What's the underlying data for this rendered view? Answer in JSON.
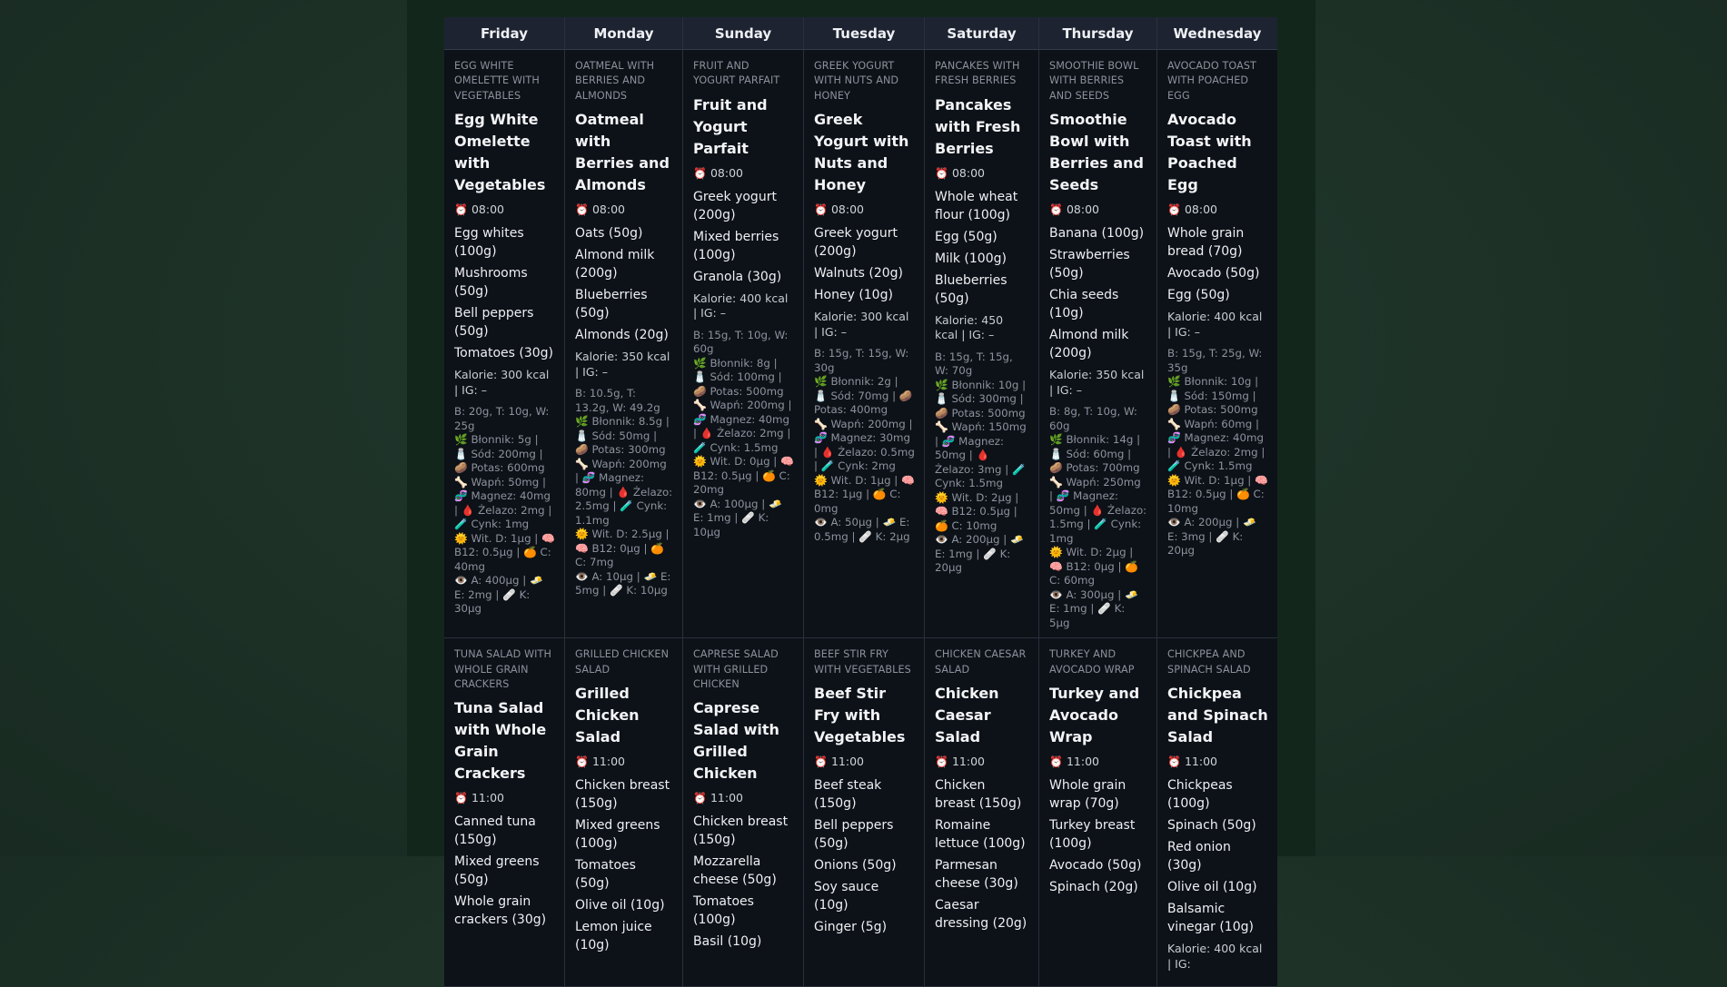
{
  "days": [
    "Friday",
    "Monday",
    "Sunday",
    "Tuesday",
    "Saturday",
    "Thursday",
    "Wednesday"
  ],
  "rows": [
    [
      {
        "subtitle": "EGG WHITE OMELETTE WITH VEGETABLES",
        "title": "Egg White Omelette with Vegetables",
        "time": "08:00",
        "ingredients": [
          "Egg whites (100g)",
          "Mushrooms (50g)",
          "Bell peppers (50g)",
          "Tomatoes (30g)"
        ],
        "kal": "Kalorie: 300 kcal | IG: –",
        "nutrients": "B: 20g, T: 10g, W: 25g\n🌿 Błonnik: 5g | 🧂 Sód: 200mg | 🥔 Potas: 600mg\n🦴 Wapń: 50mg | 🧬 Magnez: 40mg | 🩸 Żelazo: 2mg | 🧪 Cynk: 1mg\n🌞 Wit. D: 1μg | 🧠 B12: 0.5μg | 🍊 C: 40mg\n👁️ A: 400μg | 🧈 E: 2mg | 🩹 K: 30μg"
      },
      {
        "subtitle": "OATMEAL WITH BERRIES AND ALMONDS",
        "title": "Oatmeal with Berries and Almonds",
        "time": "08:00",
        "ingredients": [
          "Oats (50g)",
          "Almond milk (200g)",
          "Blueberries (50g)",
          "Almonds (20g)"
        ],
        "kal": "Kalorie: 350 kcal | IG: –",
        "nutrients": "B: 10.5g, T: 13.2g, W: 49.2g\n🌿 Błonnik: 8.5g | 🧂 Sód: 50mg | 🥔 Potas: 300mg\n🦴 Wapń: 200mg | 🧬 Magnez: 80mg | 🩸 Żelazo: 2.5mg | 🧪 Cynk: 1.1mg\n🌞 Wit. D: 2.5μg | 🧠 B12: 0μg | 🍊 C: 7mg\n👁️ A: 10μg | 🧈 E: 5mg | 🩹 K: 10μg"
      },
      {
        "subtitle": "FRUIT AND YOGURT PARFAIT",
        "title": "Fruit and Yogurt Parfait",
        "time": "08:00",
        "ingredients": [
          "Greek yogurt (200g)",
          "Mixed berries (100g)",
          "Granola (30g)"
        ],
        "kal": "Kalorie: 400 kcal | IG: –",
        "nutrients": "B: 15g, T: 10g, W: 60g\n🌿 Błonnik: 8g | 🧂 Sód: 100mg | 🥔 Potas: 500mg\n🦴 Wapń: 200mg | 🧬 Magnez: 40mg | 🩸 Żelazo: 2mg | 🧪 Cynk: 1.5mg\n🌞 Wit. D: 0μg | 🧠 B12: 0.5μg | 🍊 C: 20mg\n👁️ A: 100μg | 🧈 E: 1mg | 🩹 K: 10μg"
      },
      {
        "subtitle": "GREEK YOGURT WITH NUTS AND HONEY",
        "title": "Greek Yogurt with Nuts and Honey",
        "time": "08:00",
        "ingredients": [
          "Greek yogurt (200g)",
          "Walnuts (20g)",
          "Honey (10g)"
        ],
        "kal": "Kalorie: 300 kcal | IG: –",
        "nutrients": "B: 15g, T: 15g, W: 30g\n🌿 Błonnik: 2g | 🧂 Sód: 70mg | 🥔 Potas: 400mg\n🦴 Wapń: 200mg | 🧬 Magnez: 30mg | 🩸 Żelazo: 0.5mg | 🧪 Cynk: 2mg\n🌞 Wit. D: 1μg | 🧠 B12: 1μg | 🍊 C: 0mg\n👁️ A: 50μg | 🧈 E: 0.5mg | 🩹 K: 2μg"
      },
      {
        "subtitle": "PANCAKES WITH FRESH BERRIES",
        "title": "Pancakes with Fresh Berries",
        "time": "08:00",
        "ingredients": [
          "Whole wheat flour (100g)",
          "Egg (50g)",
          "Milk (100g)",
          "Blueberries (50g)"
        ],
        "kal": "Kalorie: 450 kcal | IG: –",
        "nutrients": "B: 15g, T: 15g, W: 70g\n🌿 Błonnik: 10g | 🧂 Sód: 300mg | 🥔 Potas: 500mg\n🦴 Wapń: 150mg | 🧬 Magnez: 50mg | 🩸 Żelazo: 3mg | 🧪 Cynk: 1.5mg\n🌞 Wit. D: 2μg | 🧠 B12: 0.5μg | 🍊 C: 10mg\n👁️ A: 200μg | 🧈 E: 1mg | 🩹 K: 20μg"
      },
      {
        "subtitle": "SMOOTHIE BOWL WITH BERRIES AND SEEDS",
        "title": "Smoothie Bowl with Berries and Seeds",
        "time": "08:00",
        "ingredients": [
          "Banana (100g)",
          "Strawberries (50g)",
          "Chia seeds (10g)",
          "Almond milk (200g)"
        ],
        "kal": "Kalorie: 350 kcal | IG: –",
        "nutrients": "B: 8g, T: 10g, W: 60g\n🌿 Błonnik: 14g | 🧂 Sód: 60mg | 🥔 Potas: 700mg\n🦴 Wapń: 250mg | 🧬 Magnez: 50mg | 🩸 Żelazo: 1.5mg | 🧪 Cynk: 1mg\n🌞 Wit. D: 2μg | 🧠 B12: 0μg | 🍊 C: 60mg\n👁️ A: 300μg | 🧈 E: 1mg | 🩹 K: 5μg"
      },
      {
        "subtitle": "AVOCADO TOAST WITH POACHED EGG",
        "title": "Avocado Toast with Poached Egg",
        "time": "08:00",
        "ingredients": [
          "Whole grain bread (70g)",
          "Avocado (50g)",
          "Egg (50g)"
        ],
        "kal": "Kalorie: 400 kcal | IG: –",
        "nutrients": "B: 15g, T: 25g, W: 35g\n🌿 Błonnik: 10g | 🧂 Sód: 150mg | 🥔 Potas: 500mg\n🦴 Wapń: 60mg | 🧬 Magnez: 40mg | 🩸 Żelazo: 2mg | 🧪 Cynk: 1.5mg\n🌞 Wit. D: 1μg | 🧠 B12: 0.5μg | 🍊 C: 10mg\n👁️ A: 200μg | 🧈 E: 3mg | 🩹 K: 20μg"
      }
    ],
    [
      {
        "subtitle": "TUNA SALAD WITH WHOLE GRAIN CRACKERS",
        "title": "Tuna Salad with Whole Grain Crackers",
        "time": "11:00",
        "ingredients": [
          "Canned tuna (150g)",
          "Mixed greens (50g)",
          "Whole grain crackers (30g)"
        ],
        "kal": "",
        "nutrients": ""
      },
      {
        "subtitle": "GRILLED CHICKEN SALAD",
        "title": "Grilled Chicken Salad",
        "time": "11:00",
        "ingredients": [
          "Chicken breast (150g)",
          "Mixed greens (100g)",
          "Tomatoes (50g)",
          "Olive oil (10g)",
          "Lemon juice (10g)"
        ],
        "kal": "",
        "nutrients": ""
      },
      {
        "subtitle": "CAPRESE SALAD WITH GRILLED CHICKEN",
        "title": "Caprese Salad with Grilled Chicken",
        "time": "11:00",
        "ingredients": [
          "Chicken breast (150g)",
          "Mozzarella cheese (50g)",
          "Tomatoes (100g)",
          "Basil (10g)"
        ],
        "kal": "",
        "nutrients": ""
      },
      {
        "subtitle": "BEEF STIR FRY WITH VEGETABLES",
        "title": "Beef Stir Fry with Vegetables",
        "time": "11:00",
        "ingredients": [
          "Beef steak (150g)",
          "Bell peppers (50g)",
          "Onions (50g)",
          "Soy sauce (10g)",
          "Ginger (5g)"
        ],
        "kal": "",
        "nutrients": ""
      },
      {
        "subtitle": "CHICKEN CAESAR SALAD",
        "title": "Chicken Caesar Salad",
        "time": "11:00",
        "ingredients": [
          "Chicken breast (150g)",
          "Romaine lettuce (100g)",
          "Parmesan cheese (30g)",
          "Caesar dressing (20g)"
        ],
        "kal": "",
        "nutrients": ""
      },
      {
        "subtitle": "TURKEY AND AVOCADO WRAP",
        "title": "Turkey and Avocado Wrap",
        "time": "11:00",
        "ingredients": [
          "Whole grain wrap (70g)",
          "Turkey breast (100g)",
          "Avocado (50g)",
          "Spinach (20g)"
        ],
        "kal": "",
        "nutrients": ""
      },
      {
        "subtitle": "CHICKPEA AND SPINACH SALAD",
        "title": "Chickpea and Spinach Salad",
        "time": "11:00",
        "ingredients": [
          "Chickpeas (100g)",
          "Spinach (50g)",
          "Red onion (30g)",
          "Olive oil (10g)",
          "Balsamic vinegar (10g)"
        ],
        "kal": "Kalorie: 400 kcal | IG:",
        "nutrients": ""
      }
    ]
  ],
  "icons": {
    "clock": "⏰"
  }
}
